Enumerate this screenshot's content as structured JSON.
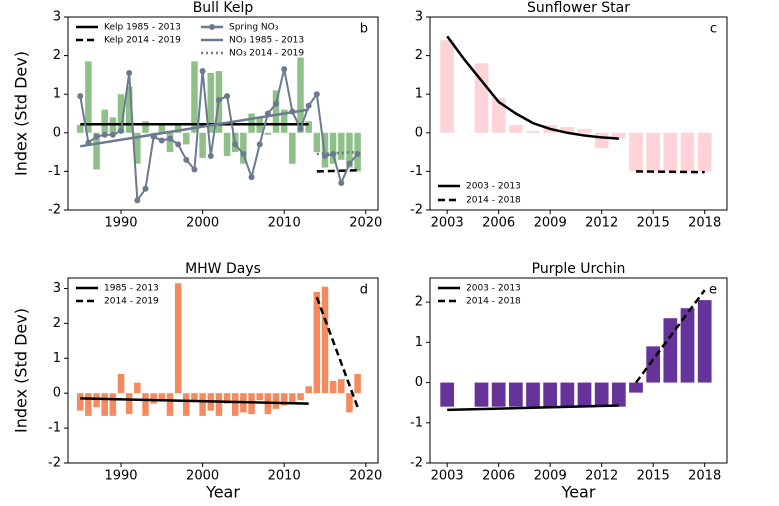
{
  "chart_data": [
    {
      "type": "bar",
      "title": "Bull Kelp",
      "panel_label": "b",
      "ylabel": "Index (Std Dev)",
      "xlim": [
        1983.5,
        2021.5
      ],
      "ylim": [
        -2,
        3
      ],
      "xticks": [
        1990,
        2000,
        2010,
        2020
      ],
      "yticks": [
        -2,
        -1,
        0,
        1,
        2,
        3
      ],
      "legend": "upper left",
      "legend_columns": 2,
      "series": [
        {
          "type": "bar",
          "color": "#8fc08a",
          "x": [
            1985,
            1986,
            1987,
            1988,
            1989,
            1990,
            1991,
            1992,
            1993,
            1994,
            1995,
            1996,
            1997,
            1998,
            1999,
            2000,
            2001,
            2002,
            2003,
            2004,
            2005,
            2006,
            2007,
            2008,
            2009,
            2010,
            2011,
            2012,
            2013,
            2014,
            2015,
            2016,
            2017,
            2018,
            2019
          ],
          "values": [
            0.2,
            1.85,
            -0.95,
            0.6,
            0.4,
            1.0,
            1.2,
            -0.8,
            0.3,
            -0.1,
            0.25,
            -0.5,
            0.2,
            -0.3,
            1.85,
            -0.65,
            1.55,
            1.6,
            -0.6,
            -0.5,
            -0.8,
            0.5,
            0.4,
            -0.05,
            1.1,
            0.6,
            -0.8,
            1.95,
            0.3,
            -0.5,
            -0.9,
            -0.8,
            -0.7,
            -0.9,
            -1.0
          ]
        },
        {
          "name": "Kelp 1985 - 2013",
          "type": "line",
          "color": "#000000",
          "style": "solid",
          "x": [
            1985,
            2013
          ],
          "values": [
            0.22,
            0.22
          ]
        },
        {
          "name": "Kelp 2014 - 2019",
          "type": "line",
          "color": "#000000",
          "style": "dashed",
          "x": [
            2014,
            2019
          ],
          "values": [
            -1.0,
            -0.97
          ]
        },
        {
          "name": "Spring NO₃",
          "type": "line",
          "color": "#6b7a8f",
          "style": "solid",
          "marker": "o",
          "x": [
            1985,
            1986,
            1987,
            1988,
            1989,
            1990,
            1991,
            1992,
            1993,
            1994,
            1995,
            1996,
            1997,
            1998,
            1999,
            2000,
            2001,
            2002,
            2003,
            2004,
            2005,
            2006,
            2007,
            2008,
            2009,
            2010,
            2011,
            2012,
            2013,
            2014,
            2015,
            2016,
            2017,
            2018,
            2019
          ],
          "values": [
            0.95,
            -0.25,
            -0.1,
            -0.05,
            -0.05,
            0.05,
            1.55,
            -1.75,
            -1.45,
            -0.1,
            -0.2,
            -0.15,
            -0.3,
            -0.7,
            -0.95,
            1.6,
            -0.6,
            0.85,
            0.95,
            -0.3,
            -0.55,
            -1.15,
            -0.3,
            0.5,
            0.75,
            1.65,
            0.55,
            0.1,
            0.7,
            1.0,
            -0.6,
            -0.55,
            -1.3,
            -0.8,
            -0.55
          ]
        },
        {
          "name": "NO₃ 1985 - 2013",
          "type": "line",
          "color": "#6b7a8f",
          "style": "solid",
          "x": [
            1985,
            2013
          ],
          "values": [
            -0.35,
            0.6
          ]
        },
        {
          "name": "NO₃ 2014 - 2019",
          "type": "line",
          "color": "#6b7a8f",
          "style": "dotted",
          "x": [
            2014,
            2019
          ],
          "values": [
            -0.55,
            -0.5
          ]
        }
      ]
    },
    {
      "type": "bar",
      "title": "Sunflower Star",
      "panel_label": "c",
      "xlim": [
        2002,
        2019.3
      ],
      "ylim": [
        -2,
        3
      ],
      "xticks": [
        2003,
        2006,
        2009,
        2012,
        2015,
        2018
      ],
      "yticks": [
        -2,
        -1,
        0,
        1,
        2,
        3
      ],
      "legend": "lower left",
      "legend_columns": 1,
      "series": [
        {
          "type": "bar",
          "color": "#ffd3d8",
          "x": [
            2003,
            2004,
            2005,
            2006,
            2007,
            2008,
            2009,
            2010,
            2011,
            2012,
            2013,
            2014,
            2015,
            2016,
            2017,
            2018
          ],
          "values": [
            2.4,
            null,
            1.8,
            0.9,
            0.2,
            0.05,
            0.2,
            0.15,
            0.1,
            -0.4,
            -0.15,
            -1.0,
            -1.0,
            -1.0,
            -1.0,
            -1.0
          ]
        },
        {
          "name": "2003 - 2013",
          "type": "line",
          "color": "#000000",
          "style": "solid",
          "x": [
            2003,
            2004,
            2005,
            2006,
            2007,
            2008,
            2009,
            2010,
            2011,
            2012,
            2013
          ],
          "values": [
            2.5,
            1.9,
            1.35,
            0.8,
            0.5,
            0.25,
            0.1,
            0.0,
            -0.07,
            -0.12,
            -0.15
          ]
        },
        {
          "name": "2014 - 2018",
          "type": "line",
          "color": "#000000",
          "style": "dashed",
          "x": [
            2014,
            2018
          ],
          "values": [
            -1.0,
            -1.02
          ]
        }
      ]
    },
    {
      "type": "bar",
      "title": "MHW Days",
      "panel_label": "d",
      "ylabel": "Index (Std Dev)",
      "xlabel": "Year",
      "xlim": [
        1983.5,
        2021.5
      ],
      "ylim": [
        -2,
        3.3
      ],
      "xticks": [
        1990,
        2000,
        2010,
        2020
      ],
      "yticks": [
        -2,
        -1,
        0,
        1,
        2,
        3
      ],
      "legend": "upper left",
      "legend_columns": 1,
      "series": [
        {
          "type": "bar",
          "color": "#f58a5e",
          "x": [
            1985,
            1986,
            1987,
            1988,
            1989,
            1990,
            1991,
            1992,
            1993,
            1994,
            1995,
            1996,
            1997,
            1998,
            1999,
            2000,
            2001,
            2002,
            2003,
            2004,
            2005,
            2006,
            2007,
            2008,
            2009,
            2010,
            2011,
            2012,
            2013,
            2014,
            2015,
            2016,
            2017,
            2018,
            2019
          ],
          "values": [
            -0.5,
            -0.65,
            -0.4,
            -0.65,
            -0.65,
            0.55,
            -0.6,
            0.3,
            -0.65,
            -0.3,
            -0.2,
            -0.65,
            3.15,
            -0.65,
            -0.2,
            -0.65,
            -0.5,
            -0.65,
            -0.3,
            -0.65,
            -0.55,
            -0.6,
            -0.2,
            -0.6,
            -0.45,
            -0.35,
            -0.3,
            -0.2,
            0.2,
            2.9,
            3.05,
            0.35,
            0.4,
            -0.55,
            0.55
          ]
        },
        {
          "name": "1985 - 2013",
          "type": "line",
          "color": "#000000",
          "style": "solid",
          "x": [
            1985,
            2013
          ],
          "values": [
            -0.15,
            -0.3
          ]
        },
        {
          "name": "2014 - 2019",
          "type": "line",
          "color": "#000000",
          "style": "dashed",
          "x": [
            2014,
            2019
          ],
          "values": [
            2.75,
            -0.4
          ]
        }
      ]
    },
    {
      "type": "bar",
      "title": "Purple Urchin",
      "panel_label": "e",
      "xlabel": "Year",
      "xlim": [
        2002,
        2019.3
      ],
      "ylim": [
        -2,
        2.6
      ],
      "xticks": [
        2003,
        2006,
        2009,
        2012,
        2015,
        2018
      ],
      "yticks": [
        -2,
        -1,
        0,
        1,
        2
      ],
      "legend": "upper left",
      "legend_columns": 1,
      "series": [
        {
          "type": "bar",
          "color": "#66339a",
          "x": [
            2003,
            2004,
            2005,
            2006,
            2007,
            2008,
            2009,
            2010,
            2011,
            2012,
            2013,
            2014,
            2015,
            2016,
            2017,
            2018
          ],
          "values": [
            -0.6,
            null,
            -0.6,
            -0.6,
            -0.6,
            -0.6,
            -0.6,
            -0.6,
            -0.6,
            -0.6,
            -0.6,
            -0.25,
            0.9,
            1.6,
            1.85,
            2.05
          ]
        },
        {
          "name": "2003 - 2013",
          "type": "line",
          "color": "#000000",
          "style": "solid",
          "x": [
            2003,
            2013
          ],
          "values": [
            -0.68,
            -0.57
          ]
        },
        {
          "name": "2014 - 2018",
          "type": "line",
          "color": "#000000",
          "style": "dashed",
          "x": [
            2014,
            2018
          ],
          "values": [
            0.0,
            2.3
          ]
        }
      ]
    }
  ]
}
